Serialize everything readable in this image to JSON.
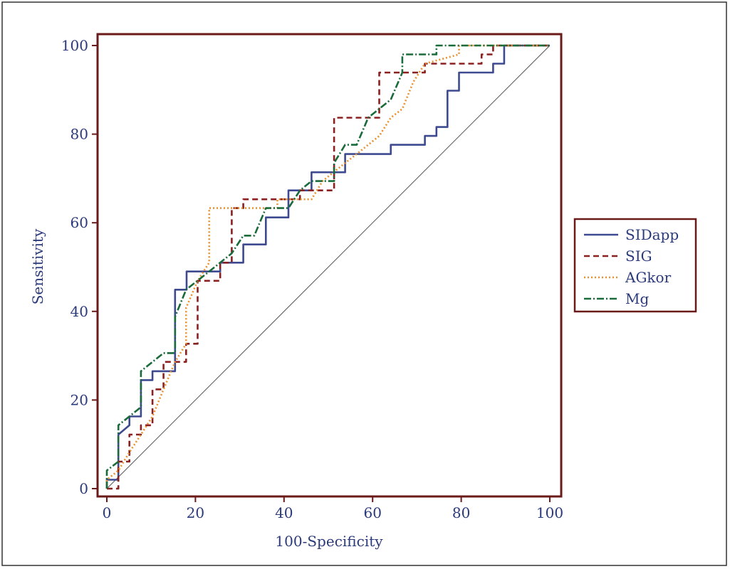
{
  "chart_data": {
    "type": "line",
    "xlabel": "100-Specificity",
    "ylabel": "Sensitivity",
    "xlim": [
      0,
      100
    ],
    "ylim": [
      0,
      100
    ],
    "xticks": [
      "0",
      "20",
      "40",
      "60",
      "80",
      "100"
    ],
    "yticks": [
      "0",
      "20",
      "40",
      "60",
      "80",
      "100"
    ],
    "legend_position": "right",
    "reference_line": {
      "x": [
        0,
        100
      ],
      "y": [
        0,
        100
      ],
      "color": "#555555"
    },
    "series": [
      {
        "name": "SIDapp",
        "color": "#3d4a8f",
        "dash": "solid",
        "points": [
          [
            0,
            0
          ],
          [
            0,
            2
          ],
          [
            2.6,
            2
          ],
          [
            2.6,
            12.2
          ],
          [
            5.1,
            14.3
          ],
          [
            5.1,
            16.3
          ],
          [
            7.7,
            16.3
          ],
          [
            7.7,
            24.5
          ],
          [
            10.3,
            24.5
          ],
          [
            10.3,
            26.5
          ],
          [
            15.4,
            26.5
          ],
          [
            15.4,
            44.9
          ],
          [
            18,
            44.9
          ],
          [
            18,
            49
          ],
          [
            25.6,
            49
          ],
          [
            25.6,
            51
          ],
          [
            30.8,
            51
          ],
          [
            30.8,
            55.1
          ],
          [
            35.9,
            55.1
          ],
          [
            35.9,
            61.2
          ],
          [
            41,
            61.2
          ],
          [
            41,
            67.3
          ],
          [
            46.2,
            67.3
          ],
          [
            46.2,
            71.4
          ],
          [
            53.8,
            71.4
          ],
          [
            53.8,
            75.5
          ],
          [
            64.1,
            75.5
          ],
          [
            64.1,
            77.6
          ],
          [
            71.8,
            77.6
          ],
          [
            71.8,
            79.6
          ],
          [
            74.4,
            79.6
          ],
          [
            74.4,
            81.6
          ],
          [
            76.9,
            81.6
          ],
          [
            76.9,
            89.8
          ],
          [
            79.5,
            89.8
          ],
          [
            79.5,
            93.9
          ],
          [
            87.2,
            93.9
          ],
          [
            87.2,
            95.9
          ],
          [
            89.7,
            95.9
          ],
          [
            89.7,
            100
          ],
          [
            100,
            100
          ]
        ]
      },
      {
        "name": "SIG",
        "color": "#8b2020",
        "dash": "8,5",
        "points": [
          [
            0,
            0
          ],
          [
            2.6,
            0
          ],
          [
            2.6,
            6.1
          ],
          [
            5.1,
            6.1
          ],
          [
            5.1,
            12.2
          ],
          [
            7.7,
            12.2
          ],
          [
            7.7,
            14.3
          ],
          [
            10.3,
            14.3
          ],
          [
            10.3,
            22.4
          ],
          [
            12.8,
            22.4
          ],
          [
            12.8,
            28.6
          ],
          [
            17.9,
            28.6
          ],
          [
            17.9,
            32.7
          ],
          [
            20.5,
            32.7
          ],
          [
            20.5,
            46.9
          ],
          [
            25.6,
            46.9
          ],
          [
            25.6,
            51
          ],
          [
            28.2,
            51
          ],
          [
            28.2,
            63.3
          ],
          [
            30.8,
            63.3
          ],
          [
            30.8,
            65.3
          ],
          [
            43.6,
            65.3
          ],
          [
            43.6,
            67.3
          ],
          [
            51.3,
            67.3
          ],
          [
            51.3,
            83.7
          ],
          [
            61.5,
            83.7
          ],
          [
            61.5,
            93.9
          ],
          [
            71.8,
            93.9
          ],
          [
            71.8,
            95.9
          ],
          [
            84.6,
            95.9
          ],
          [
            84.6,
            98
          ],
          [
            87.2,
            98
          ],
          [
            87.2,
            100
          ],
          [
            100,
            100
          ]
        ]
      },
      {
        "name": "AGkor",
        "color": "#e8912e",
        "dash": "2,3",
        "points": [
          [
            0,
            0
          ],
          [
            0,
            2
          ],
          [
            2.6,
            4.1
          ],
          [
            5.1,
            8.2
          ],
          [
            7.7,
            12.2
          ],
          [
            10.3,
            16.3
          ],
          [
            12.8,
            22.4
          ],
          [
            15.4,
            28.6
          ],
          [
            17.9,
            32.7
          ],
          [
            17.9,
            40.8
          ],
          [
            20.5,
            46.9
          ],
          [
            23.1,
            51
          ],
          [
            23.1,
            63.3
          ],
          [
            38.5,
            63.3
          ],
          [
            38.5,
            65.3
          ],
          [
            46.2,
            65.3
          ],
          [
            48.7,
            69.4
          ],
          [
            53.8,
            73.5
          ],
          [
            56.4,
            75.5
          ],
          [
            61.5,
            79.6
          ],
          [
            64.1,
            83.7
          ],
          [
            66.7,
            85.7
          ],
          [
            69.2,
            91.8
          ],
          [
            71.8,
            95.9
          ],
          [
            79.5,
            98
          ],
          [
            79.5,
            100
          ],
          [
            100,
            100
          ]
        ]
      },
      {
        "name": "Mg",
        "color": "#1a6b3a",
        "dash": "10,3,2,3",
        "points": [
          [
            0,
            0
          ],
          [
            0,
            4.1
          ],
          [
            2.6,
            6.1
          ],
          [
            2.6,
            14.3
          ],
          [
            5.1,
            16.3
          ],
          [
            7.7,
            18.4
          ],
          [
            7.7,
            26.5
          ],
          [
            12.8,
            30.6
          ],
          [
            15.4,
            30.6
          ],
          [
            15.4,
            38.8
          ],
          [
            17.9,
            44.9
          ],
          [
            23.1,
            49
          ],
          [
            28.2,
            53.1
          ],
          [
            30.8,
            57.1
          ],
          [
            33.3,
            57.1
          ],
          [
            35.9,
            63.3
          ],
          [
            41,
            63.3
          ],
          [
            43.6,
            67.3
          ],
          [
            46.2,
            69.4
          ],
          [
            51.3,
            69.4
          ],
          [
            51.3,
            73.5
          ],
          [
            53.8,
            77.6
          ],
          [
            56.4,
            77.6
          ],
          [
            59,
            83.7
          ],
          [
            64.1,
            87.8
          ],
          [
            66.7,
            93.9
          ],
          [
            66.7,
            98
          ],
          [
            74.4,
            98
          ],
          [
            74.4,
            100
          ],
          [
            100,
            100
          ]
        ]
      }
    ]
  }
}
